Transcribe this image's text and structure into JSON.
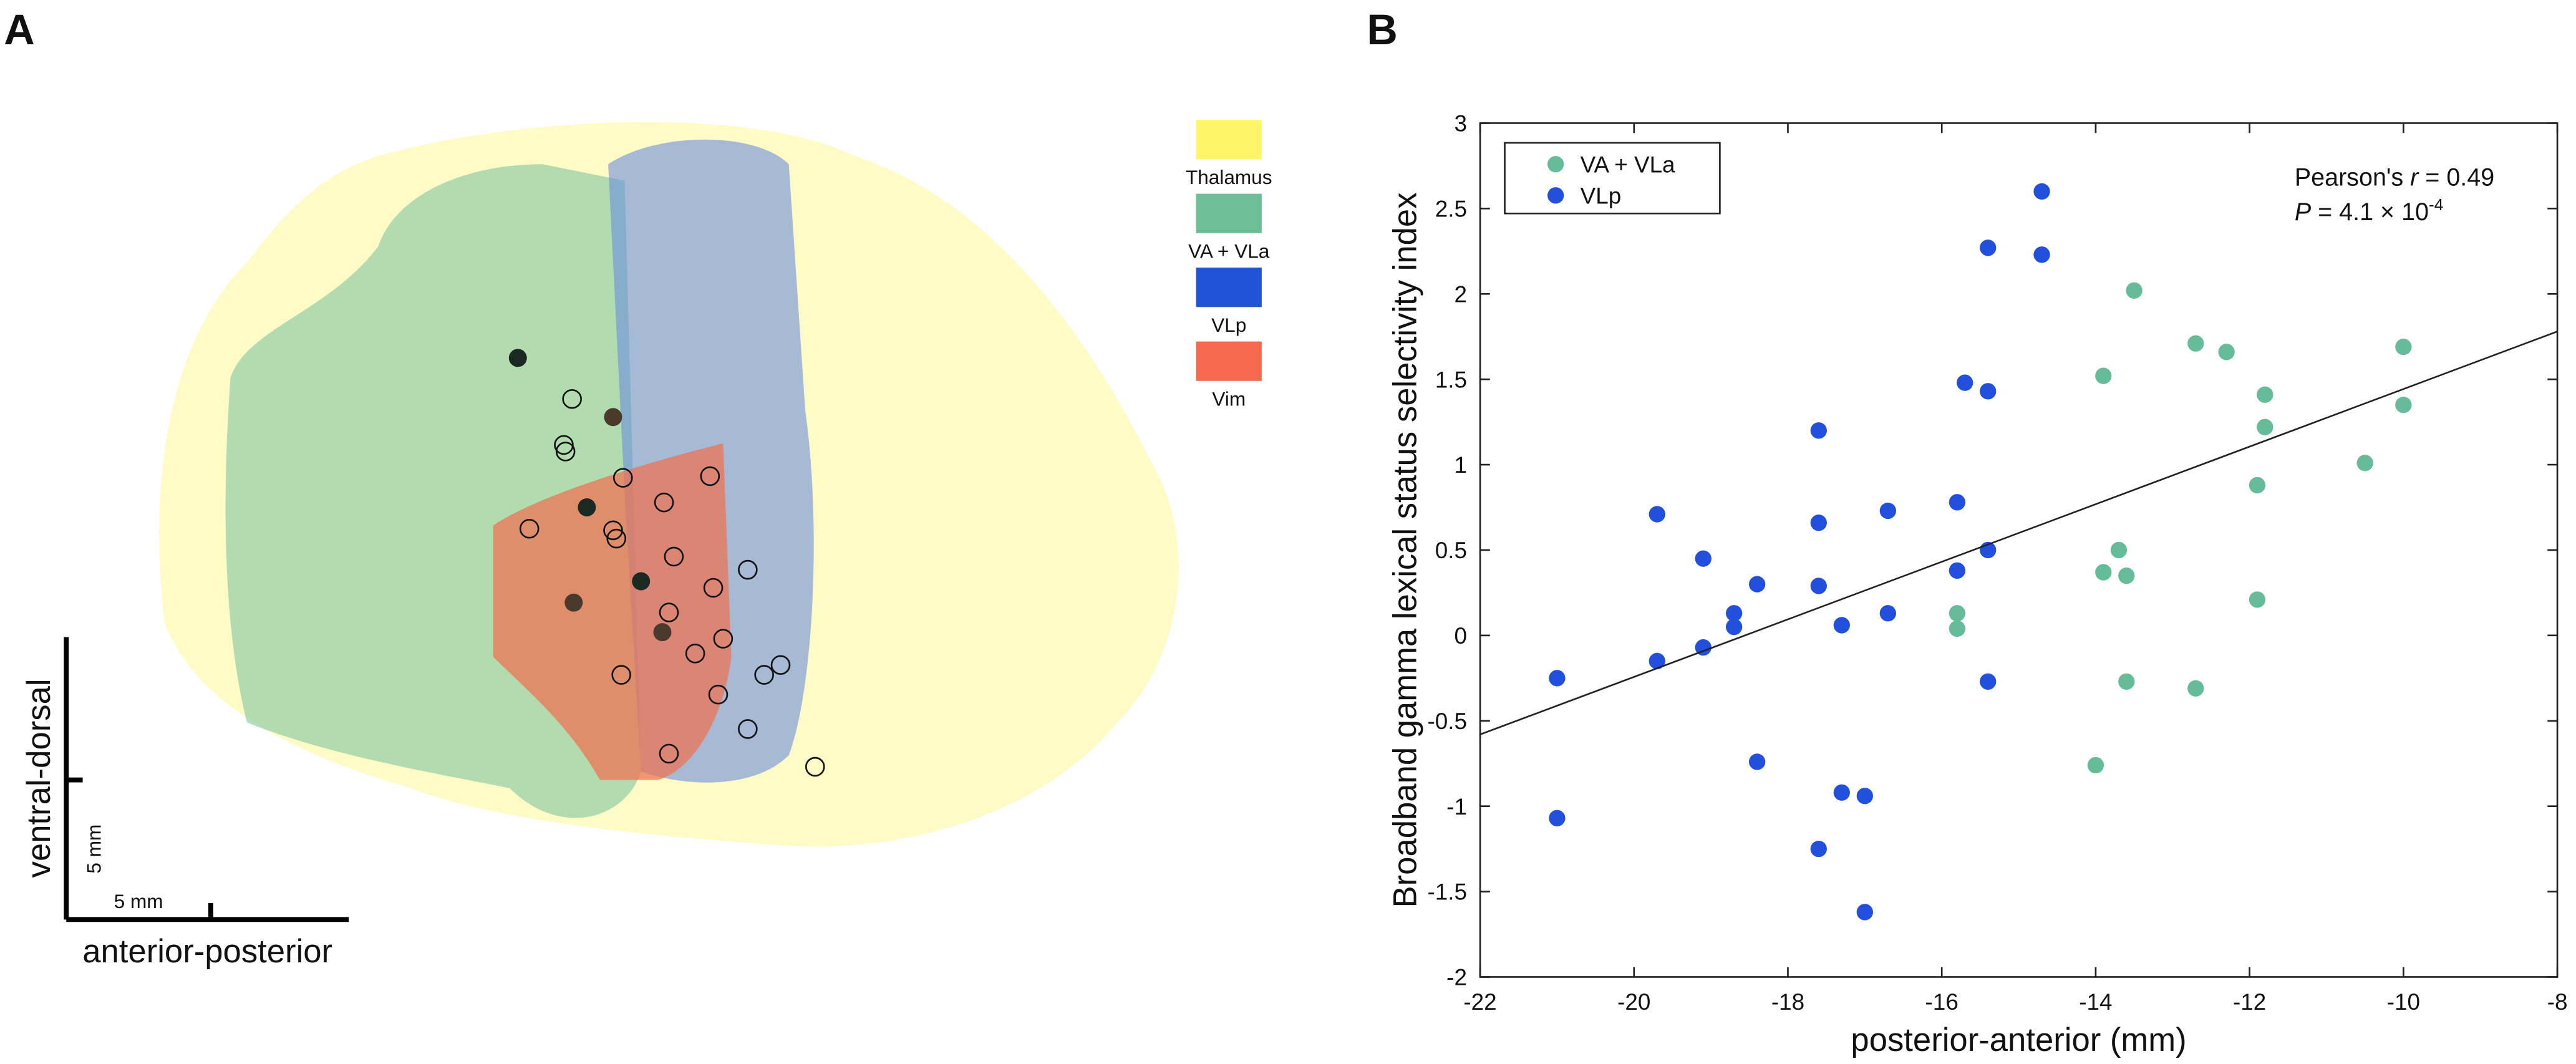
{
  "figure_a": {
    "label": "A",
    "legend": [
      {
        "name": "Thalamus",
        "color": "#fff566"
      },
      {
        "name": "VA + VLa",
        "color": "#6dbf98"
      },
      {
        "name": "VLp",
        "color": "#2252d8"
      },
      {
        "name": "Vim",
        "color": "#f36a4e"
      }
    ],
    "scale_bar": {
      "vertical_axis": "ventral-dorsal",
      "horizontal_axis": "anterior-posterior",
      "vertical_length": "5 mm",
      "horizontal_length": "5 mm"
    }
  },
  "figure_b_label": "B",
  "chart_data": {
    "type": "scatter",
    "x_label": "posterior-anterior (mm)",
    "y_label": "Broadband gamma lexical status selectivity index",
    "xlim": [
      -22,
      -8
    ],
    "xticks": [
      -22,
      -20,
      -18,
      -16,
      -14,
      -12,
      -10,
      -8
    ],
    "ylim": [
      -2,
      3
    ],
    "yticks": [
      -2,
      -1.5,
      -1,
      -0.5,
      0,
      0.5,
      1,
      1.5,
      2,
      2.5,
      3
    ],
    "legend": "upper left",
    "series": [
      {
        "name": "VA + VLa",
        "color": "#66bb99",
        "x": [
          -13.5,
          -12.7,
          -12.3,
          -10.0,
          -13.9,
          -11.8,
          -10.0,
          -11.8,
          -11.9,
          -10.5,
          -13.7,
          -13.9,
          -13.6,
          -11.9,
          -15.8,
          -15.8,
          -13.6,
          -12.7,
          -14.0
        ],
        "values": [
          2.02,
          1.71,
          1.66,
          1.69,
          1.52,
          1.41,
          1.35,
          1.22,
          0.88,
          1.01,
          0.5,
          0.37,
          0.35,
          0.21,
          0.13,
          0.04,
          -0.27,
          -0.31,
          -0.76
        ]
      },
      {
        "name": "VLp",
        "color": "#2250dd",
        "x": [
          -14.7,
          -15.4,
          -14.7,
          -15.7,
          -15.4,
          -17.6,
          -15.8,
          -19.7,
          -16.7,
          -17.6,
          -15.4,
          -19.1,
          -15.8,
          -18.4,
          -17.6,
          -18.7,
          -16.7,
          -18.7,
          -17.3,
          -19.1,
          -19.7,
          -21.0,
          -15.4,
          -18.4,
          -17.3,
          -17.0,
          -21.0,
          -17.6,
          -17.0
        ],
        "values": [
          2.6,
          2.27,
          2.23,
          1.48,
          1.43,
          1.2,
          0.78,
          0.71,
          0.73,
          0.66,
          0.5,
          0.45,
          0.38,
          0.3,
          0.29,
          0.13,
          0.13,
          0.05,
          0.06,
          -0.07,
          -0.15,
          -0.25,
          -0.27,
          -0.74,
          -0.92,
          -0.94,
          -1.07,
          -1.25,
          -1.62
        ]
      }
    ],
    "fit_line": {
      "x": [
        -22,
        -8
      ],
      "y": [
        -0.58,
        1.78
      ],
      "color": "#222222"
    },
    "annotations": [
      {
        "parts": [
          "Pearson's ",
          "r",
          " = 0.49"
        ]
      },
      {
        "parts": [
          "P",
          " = 4.1 × 10",
          "-4"
        ]
      }
    ]
  }
}
